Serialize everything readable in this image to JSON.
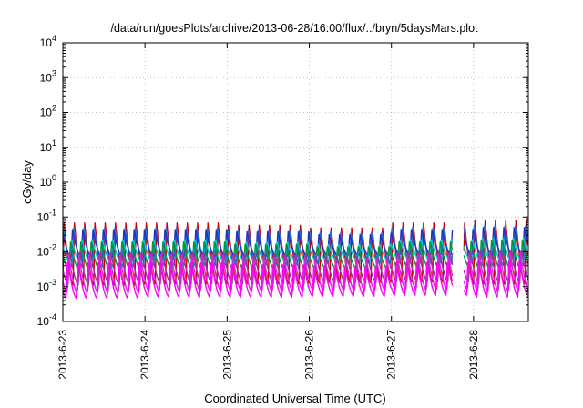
{
  "chart_data": {
    "type": "line",
    "title": "/data/run/goesPlots/archive/2013-06-28/16:00/flux/../bryn/5daysMars.plot",
    "xlabel": "Coordinated Universal Time (UTC)",
    "ylabel": "cGy/day",
    "y_scale": "log",
    "ylim": [
      0.0001,
      10000
    ],
    "y_ticks": [
      {
        "base": "10",
        "exp": "-4"
      },
      {
        "base": "10",
        "exp": "-3"
      },
      {
        "base": "10",
        "exp": "-2"
      },
      {
        "base": "10",
        "exp": "-1"
      },
      {
        "base": "10",
        "exp": "0"
      },
      {
        "base": "10",
        "exp": "1"
      },
      {
        "base": "10",
        "exp": "2"
      },
      {
        "base": "10",
        "exp": "3"
      },
      {
        "base": "10",
        "exp": "4"
      }
    ],
    "xlim": [
      "2013-06-23 00:00",
      "2013-06-28 16:00"
    ],
    "x_ticks": [
      "2013-6-23",
      "2013-6-24",
      "2013-6-25",
      "2013-6-26",
      "2013-6-27",
      "2013-6-28"
    ],
    "grid": true,
    "legend": "none",
    "oscillation": {
      "cycles_per_day": 8,
      "band_max_per_day": [
        0.07,
        0.07,
        0.06,
        0.05,
        0.07,
        0.08
      ],
      "band_min_per_day": [
        0.0006,
        0.0007,
        0.0007,
        0.0008,
        0.0009,
        0.0007
      ]
    },
    "series": [
      {
        "color": "#cc0000",
        "peak": 0.07,
        "trough": 0.0012
      },
      {
        "color": "#2a6fdd",
        "peak": 0.06,
        "trough": 0.004
      },
      {
        "color": "#2233bb",
        "peak": 0.045,
        "trough": 0.007
      },
      {
        "color": "#00c8c8",
        "peak": 0.025,
        "trough": 0.005
      },
      {
        "color": "#009933",
        "peak": 0.02,
        "trough": 0.003
      },
      {
        "color": "#993399",
        "peak": 0.012,
        "trough": 0.0012
      },
      {
        "color": "#dd22dd",
        "peak": 0.009,
        "trough": 0.0007
      },
      {
        "color": "#ff00ff",
        "peak": 0.006,
        "trough": 0.0005
      }
    ],
    "gaps": [
      [
        "2013-06-27 18:00",
        "2013-06-27 21:00"
      ]
    ]
  }
}
